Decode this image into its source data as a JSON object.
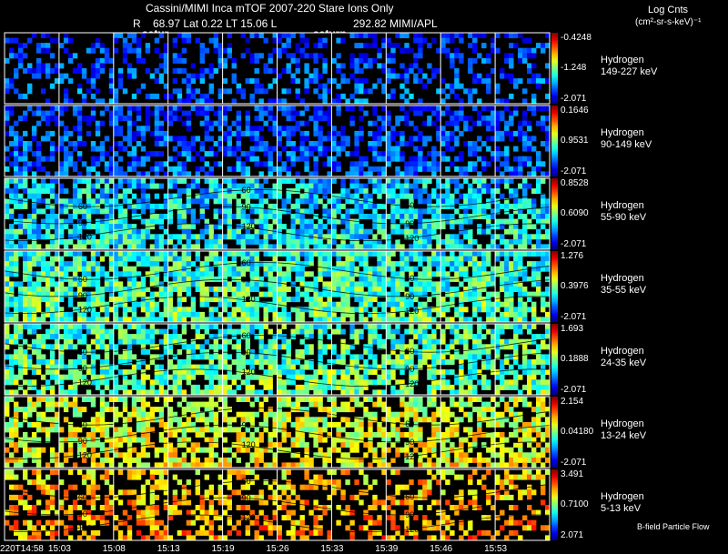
{
  "header": {
    "title": "Cassini/MIMI Inca mTOF  2007-220   Stare   Ions Only",
    "ephem_R": "R",
    "ephem_mid": "68.97  Lat 0.22  LT 15.06  L",
    "ephem_end": "292.82   MIMI/APL",
    "saturn_label_1": "satur",
    "saturn_label_2": "saturn",
    "units_line1": "Log Cnts",
    "units_line2": "(cm²-sr-s-keV)⁻¹"
  },
  "footer": {
    "bfield_label": "B-field Particle Flow"
  },
  "chart_data": {
    "type": "heatmap",
    "time_ticks": [
      "220T14:58",
      "15:03",
      "15:08",
      "15:13",
      "15:19",
      "15:26",
      "15:33",
      "15:39",
      "15:46",
      "15:53"
    ],
    "contour_labels": [
      "60",
      "90",
      "120"
    ],
    "panels": [
      {
        "species": "Hydrogen",
        "energy": "149-227 keV",
        "cmax": "-0.4248",
        "cmid": "-1.248",
        "cmin": "-2.071",
        "density": 0.38,
        "level": 0.2,
        "spread": 0.12,
        "contours": false
      },
      {
        "species": "Hydrogen",
        "energy": "90-149 keV",
        "cmax": "0.1646",
        "cmid": "0.9531",
        "cmin": "-2.071",
        "density": 0.55,
        "level": 0.2,
        "spread": 0.12,
        "contours": false
      },
      {
        "species": "Hydrogen",
        "energy": "55-90 keV",
        "cmax": "0.8528",
        "cmid": "0.6090",
        "cmin": "-2.071",
        "density": 0.7,
        "level": 0.36,
        "spread": 0.16,
        "contours": true
      },
      {
        "species": "Hydrogen",
        "energy": "35-55 keV",
        "cmax": "1.276",
        "cmid": "0.3976",
        "cmin": "-2.071",
        "density": 0.78,
        "level": 0.44,
        "spread": 0.16,
        "contours": true
      },
      {
        "species": "Hydrogen",
        "energy": "24-35 keV",
        "cmax": "1.693",
        "cmid": "0.1888",
        "cmin": "-2.071",
        "density": 0.68,
        "level": 0.46,
        "spread": 0.16,
        "contours": true
      },
      {
        "species": "Hydrogen",
        "energy": "13-24 keV",
        "cmax": "2.154",
        "cmid": "0.04180",
        "cmin": "-2.071",
        "density": 0.62,
        "level": 0.6,
        "spread": 0.14,
        "contours": true
      },
      {
        "species": "Hydrogen",
        "energy": "5-13 keV",
        "cmax": "3.491",
        "cmid": "0.7100",
        "cmin": "2.071",
        "density": 0.42,
        "level": 0.7,
        "spread": 0.14,
        "contours": true
      }
    ]
  }
}
